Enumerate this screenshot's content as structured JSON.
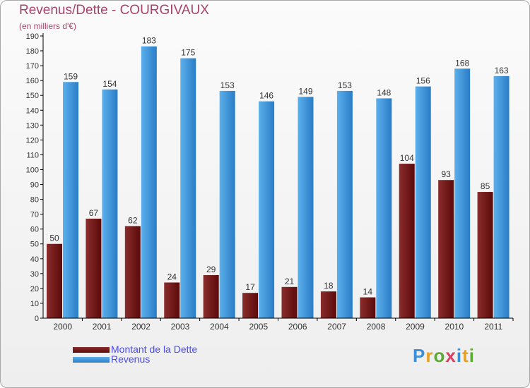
{
  "header": {
    "title": "Revenus/Dette - COURGIVAUX",
    "subtitle": "(en milliers d'€)"
  },
  "legend": {
    "debt_label": "Montant de la Dette",
    "revenue_label": "Revenus"
  },
  "logo": {
    "letters": [
      "P",
      "r",
      "o",
      "x",
      "i",
      "t",
      "i"
    ],
    "colors": [
      "#3a8fd8",
      "#e8a020",
      "#5aaa35",
      "#d84060",
      "#3a8fd8",
      "#e8a020",
      "#5aaa35"
    ]
  },
  "colors": {
    "debt_dark": "#5c0a0a",
    "debt_light": "#8a2c2c",
    "revenue_dark": "#2a7cc6",
    "revenue_light": "#5cb0ec",
    "axis": "#000000",
    "grid": "#bbbbbb"
  },
  "chart_data": {
    "type": "bar",
    "title": "Revenus/Dette - COURGIVAUX",
    "ylabel": "(en milliers d'€)",
    "xlabel": "",
    "categories": [
      "2000",
      "2001",
      "2002",
      "2003",
      "2004",
      "2005",
      "2006",
      "2007",
      "2008",
      "2009",
      "2010",
      "2011"
    ],
    "series": [
      {
        "name": "Montant de la Dette",
        "values": [
          50,
          67,
          62,
          24,
          29,
          17,
          21,
          18,
          14,
          104,
          93,
          85
        ]
      },
      {
        "name": "Revenus",
        "values": [
          159,
          154,
          183,
          175,
          153,
          146,
          149,
          153,
          148,
          156,
          168,
          163
        ]
      }
    ],
    "ylim": [
      0,
      190
    ],
    "ytick_step": 10,
    "legend_position": "bottom-left",
    "grid": false
  }
}
